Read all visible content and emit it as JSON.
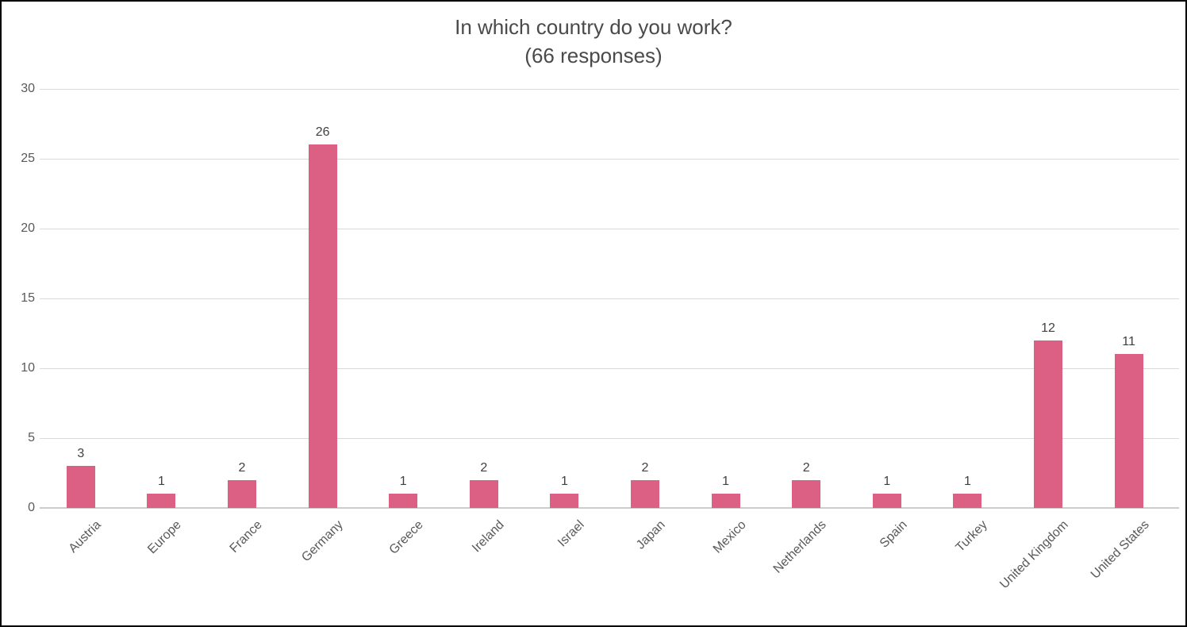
{
  "chart_data": {
    "type": "bar",
    "title": "In which country do you work?",
    "subtitle": "(66 responses)",
    "categories": [
      "Austria",
      "Europe",
      "France",
      "Germany",
      "Greece",
      "Ireland",
      "Israel",
      "Japan",
      "Mexico",
      "Netherlands",
      "Spain",
      "Turkey",
      "United Kingdom",
      "United States"
    ],
    "values": [
      3,
      1,
      2,
      26,
      1,
      2,
      1,
      2,
      1,
      2,
      1,
      1,
      12,
      11
    ],
    "xlabel": "",
    "ylabel": "",
    "ylim": [
      0,
      30
    ],
    "yticks": [
      0,
      5,
      10,
      15,
      20,
      25,
      30
    ],
    "grid": true,
    "legend_position": "none",
    "bar_color": "#dc5f84",
    "title_color": "#4a4a4a",
    "tick_label_color": "#595959",
    "gridline_color": "#d9d9d9"
  }
}
